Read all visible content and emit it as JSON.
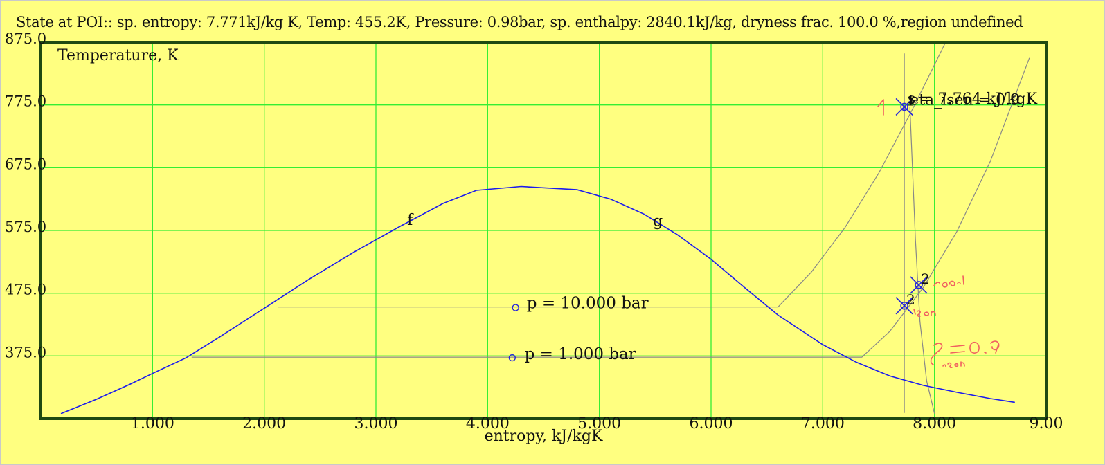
{
  "status_text": "State at POI:: sp. entropy: 7.771kJ/kg K, Temp: 455.2K, Pressure: 0.98bar, sp. enthalpy: 2840.1kJ/kg, dryness frac. 100.0 %,region undefined",
  "chart_data": {
    "type": "line",
    "title": "",
    "xlabel": "entropy, kJ/kgK",
    "ylabel": "Temperature, K",
    "xlim": [
      0.0,
      9.0
    ],
    "ylim": [
      275.0,
      875.0
    ],
    "x_ticks": [
      1.0,
      2.0,
      3.0,
      4.0,
      5.0,
      6.0,
      7.0,
      8.0,
      9.0
    ],
    "x_tick_labels": [
      "1.000",
      "2.000",
      "3.000",
      "4.000",
      "5.000",
      "6.000",
      "7.000",
      "8.000",
      "9.00"
    ],
    "y_ticks": [
      375.0,
      475.0,
      575.0,
      675.0,
      775.0,
      875.0
    ],
    "y_tick_labels": [
      "375.0",
      "475.0",
      "575.0",
      "675.0",
      "775.0",
      "875.0"
    ],
    "grid": true,
    "colors": {
      "background": "#ffff80",
      "grid": "#33ee33",
      "frame": "#1f4a12",
      "dome": "#1a1aee",
      "isobar": "#888888",
      "handwriting": "#f06060",
      "marker": "#2222dd"
    },
    "saturation_dome": {
      "x": [
        0.18,
        0.5,
        0.8,
        1.0,
        1.3,
        1.6,
        2.0,
        2.4,
        2.8,
        3.2,
        3.6,
        3.9,
        4.3,
        4.8,
        5.1,
        5.4,
        5.7,
        6.0,
        6.3,
        6.6,
        7.0,
        7.3,
        7.6,
        7.9,
        8.2,
        8.5,
        8.72
      ],
      "y": [
        283,
        306,
        330,
        347,
        372,
        405,
        451,
        497,
        540,
        580,
        618,
        639,
        645,
        640,
        625,
        601,
        568,
        529,
        484,
        440,
        393,
        365,
        343,
        328,
        317,
        307,
        301
      ],
      "labels": [
        {
          "text": "f",
          "x": 3.28,
          "y": 584
        },
        {
          "text": "g",
          "x": 5.48,
          "y": 582
        }
      ]
    },
    "isobars": [
      {
        "label": "p = 10.000 bar",
        "label_pos": [
          4.35,
          451
        ],
        "dot": [
          4.25,
          452
        ],
        "x": [
          2.12,
          6.6,
          6.9,
          7.2,
          7.5,
          7.8,
          8.1
        ],
        "y": [
          453,
          453,
          509,
          580,
          666,
          767,
          875
        ]
      },
      {
        "label": "p = 1.000 bar",
        "label_pos": [
          4.33,
          370
        ],
        "dot": [
          4.22,
          372
        ],
        "x": [
          1.35,
          7.35,
          7.6,
          7.9,
          8.2,
          8.5,
          8.85
        ],
        "y": [
          373,
          373,
          414,
          484,
          573,
          685,
          850
        ]
      }
    ],
    "isentrope": {
      "x": [
        7.73,
        7.73
      ],
      "y": [
        284,
        857
      ]
    },
    "expansion_line": {
      "x": [
        7.78,
        7.83,
        7.87,
        7.93,
        8.0
      ],
      "y": [
        772,
        560,
        430,
        335,
        283
      ]
    },
    "points": [
      {
        "label": "1",
        "x": 7.73,
        "y": 772
      },
      {
        "label": "2",
        "x": 7.73,
        "y": 455
      },
      {
        "label": "2",
        "x": 7.86,
        "y": 488
      }
    ],
    "annotations": [
      {
        "text": "eta_isen = 0.9",
        "x": 7.78,
        "y": 775
      },
      {
        "text": "s = 7.764 kJ/kgK",
        "x": 7.76,
        "y": 777
      }
    ]
  }
}
